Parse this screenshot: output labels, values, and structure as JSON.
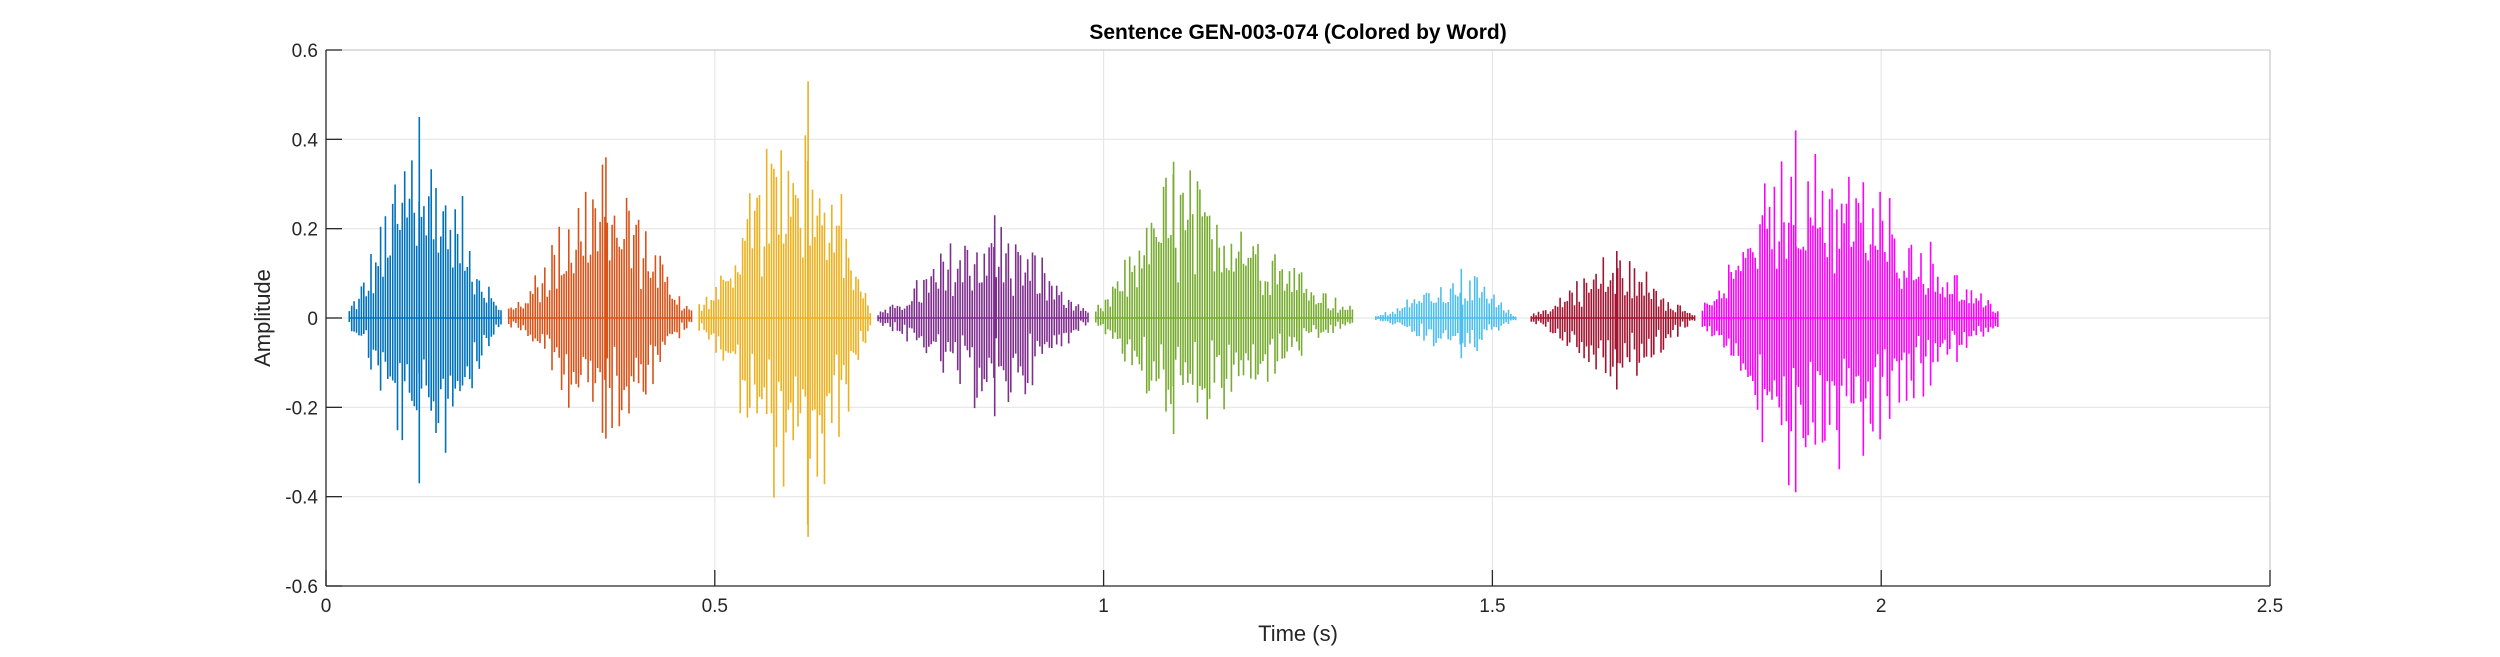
{
  "chart_data": {
    "type": "line",
    "title": "Sentence GEN-003-074 (Colored by Word)",
    "xlabel": "Time (s)",
    "ylabel": "Amplitude",
    "xlim": [
      0,
      2.5
    ],
    "ylim": [
      -0.6,
      0.6
    ],
    "xticks": [
      0,
      0.5,
      1,
      1.5,
      2,
      2.5
    ],
    "xtick_labels": [
      "0",
      "0.5",
      "1",
      "1.5",
      "2",
      "2.5"
    ],
    "yticks": [
      -0.6,
      -0.4,
      -0.2,
      0,
      0.2,
      0.4,
      0.6
    ],
    "ytick_labels": [
      "-0.6",
      "-0.4",
      "-0.2",
      "0",
      "0.2",
      "0.4",
      "0.6"
    ],
    "grid": true,
    "series": [
      {
        "color": "#0072BD",
        "start": 0.03,
        "end": 0.225,
        "peak_time": 0.12,
        "max": 0.45,
        "min": -0.37
      },
      {
        "color": "#D95319",
        "start": 0.235,
        "end": 0.47,
        "peak_time": 0.36,
        "max": 0.36,
        "min": -0.27
      },
      {
        "color": "#EDB120",
        "start": 0.48,
        "end": 0.7,
        "peak_time": 0.62,
        "max": 0.53,
        "min": -0.49
      },
      {
        "color": "#7E2F8E",
        "start": 0.71,
        "end": 0.98,
        "peak_time": 0.86,
        "max": 0.23,
        "min": -0.22
      },
      {
        "color": "#77AC30",
        "start": 0.99,
        "end": 1.32,
        "peak_time": 1.09,
        "max": 0.35,
        "min": -0.26
      },
      {
        "color": "#4DBEEE",
        "start": 1.35,
        "end": 1.53,
        "peak_time": 1.46,
        "max": 0.11,
        "min": -0.09
      },
      {
        "color": "#A2142F",
        "start": 1.55,
        "end": 1.76,
        "peak_time": 1.66,
        "max": 0.15,
        "min": -0.16
      },
      {
        "color": "#FF00FF",
        "start": 1.77,
        "end": 2.15,
        "peak_time": 1.89,
        "max": 0.42,
        "min": -0.39
      }
    ]
  }
}
